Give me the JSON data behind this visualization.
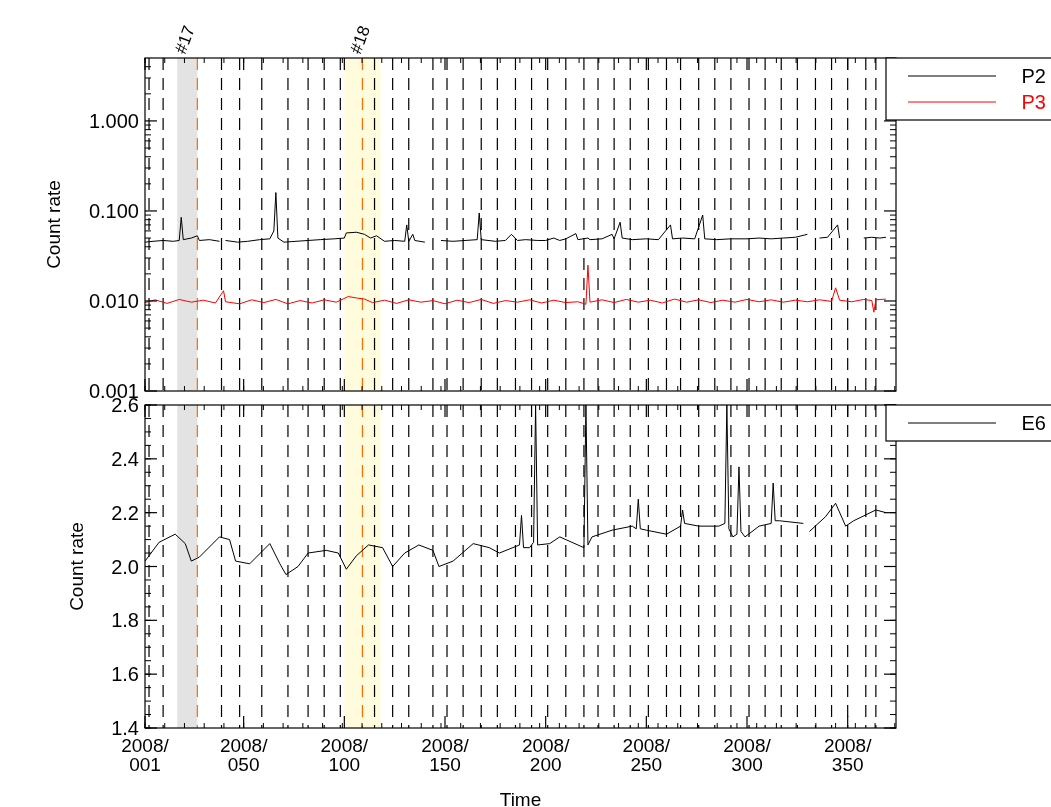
{
  "chart_data": [
    {
      "type": "line",
      "ylabel": "Count rate",
      "log": "y",
      "legend": "top right",
      "tick_labels": "y",
      "xlim": [
        "2008-01-01",
        "2009-01-08"
      ],
      "xticks": [
        {
          "value": "2008-01-01",
          "label": null
        },
        {
          "value": "2008-02-19",
          "label": null
        },
        {
          "value": "2008-04-09",
          "label": null
        },
        {
          "value": "2008-05-29",
          "label": null
        },
        {
          "value": "2008-07-18",
          "label": null
        },
        {
          "value": "2008-09-06",
          "label": null
        },
        {
          "value": "2008-10-26",
          "label": null
        },
        {
          "value": "2008-12-15",
          "label": null
        }
      ],
      "ylim": [
        0.001,
        5
      ],
      "yticks": [
        {
          "value": 0.001,
          "label": "0.001"
        },
        {
          "value": 0.01,
          "label": "0.010"
        },
        {
          "value": 0.1,
          "label": "0.100"
        },
        {
          "value": 1,
          "label": "1.000"
        }
      ],
      "bands": [
        {
          "axis": "x",
          "from": "2008-01-17",
          "to": "2008-01-27",
          "label": "#17",
          "color": "#e3e3e3"
        },
        {
          "axis": "x",
          "from": "2008-04-09",
          "to": "2008-04-27",
          "label": "#18",
          "color": "#fffbdc"
        }
      ],
      "ref_lines": [
        {
          "axis": "x",
          "value": "2008-01-03",
          "line_style": "dashed"
        },
        {
          "axis": "x",
          "value": "2008-01-10",
          "line_style": "dashed"
        },
        {
          "axis": "x",
          "value": "2008-01-27",
          "line_style": "dashed",
          "color": "#ff6a00"
        },
        {
          "axis": "x",
          "value": "2008-02-08",
          "line_style": "dashed"
        },
        {
          "axis": "x",
          "value": "2008-02-17",
          "line_style": "dashed"
        },
        {
          "axis": "x",
          "value": "2008-02-28",
          "line_style": "dashed"
        },
        {
          "axis": "x",
          "value": "2008-03-12",
          "line_style": "dashed"
        },
        {
          "axis": "x",
          "value": "2008-03-22",
          "line_style": "dashed"
        },
        {
          "axis": "x",
          "value": "2008-03-30",
          "line_style": "dashed"
        },
        {
          "axis": "x",
          "value": "2008-04-07",
          "line_style": "dashed"
        },
        {
          "axis": "x",
          "value": "2008-04-18",
          "line_style": "dashed",
          "color": "#ff6a00"
        },
        {
          "axis": "x",
          "value": "2008-04-24",
          "line_style": "dashed"
        },
        {
          "axis": "x",
          "value": "2008-05-03",
          "line_style": "dashed"
        },
        {
          "axis": "x",
          "value": "2008-05-11",
          "line_style": "dashed"
        },
        {
          "axis": "x",
          "value": "2008-05-23",
          "line_style": "dashed"
        },
        {
          "axis": "x",
          "value": "2008-05-30",
          "line_style": "dashed"
        },
        {
          "axis": "x",
          "value": "2008-06-07",
          "line_style": "dashed"
        },
        {
          "axis": "x",
          "value": "2008-06-16",
          "line_style": "dashed"
        },
        {
          "axis": "x",
          "value": "2008-06-24",
          "line_style": "dashed"
        },
        {
          "axis": "x",
          "value": "2008-07-03",
          "line_style": "dashed"
        },
        {
          "axis": "x",
          "value": "2008-07-11",
          "line_style": "dashed"
        },
        {
          "axis": "x",
          "value": "2008-07-19",
          "line_style": "dashed"
        },
        {
          "axis": "x",
          "value": "2008-07-28",
          "line_style": "dashed"
        },
        {
          "axis": "x",
          "value": "2008-08-06",
          "line_style": "dashed"
        },
        {
          "axis": "x",
          "value": "2008-08-13",
          "line_style": "dashed"
        },
        {
          "axis": "x",
          "value": "2008-08-21",
          "line_style": "dashed"
        },
        {
          "axis": "x",
          "value": "2008-08-29",
          "line_style": "dashed"
        },
        {
          "axis": "x",
          "value": "2008-09-07",
          "line_style": "dashed"
        },
        {
          "axis": "x",
          "value": "2008-09-16",
          "line_style": "dashed"
        },
        {
          "axis": "x",
          "value": "2008-09-23",
          "line_style": "dashed"
        },
        {
          "axis": "x",
          "value": "2008-10-02",
          "line_style": "dashed"
        },
        {
          "axis": "x",
          "value": "2008-10-10",
          "line_style": "dashed"
        },
        {
          "axis": "x",
          "value": "2008-10-18",
          "line_style": "dashed"
        },
        {
          "axis": "x",
          "value": "2008-10-27",
          "line_style": "dashed"
        },
        {
          "axis": "x",
          "value": "2008-11-04",
          "line_style": "dashed"
        },
        {
          "axis": "x",
          "value": "2008-11-12",
          "line_style": "dashed"
        },
        {
          "axis": "x",
          "value": "2008-11-20",
          "line_style": "dashed"
        },
        {
          "axis": "x",
          "value": "2008-11-29",
          "line_style": "dashed"
        },
        {
          "axis": "x",
          "value": "2008-12-07",
          "line_style": "dashed"
        },
        {
          "axis": "x",
          "value": "2008-12-15",
          "line_style": "dashed"
        },
        {
          "axis": "x",
          "value": "2008-12-24",
          "line_style": "dashed"
        },
        {
          "axis": "x",
          "value": "2008-12-29",
          "line_style": "dashed"
        }
      ],
      "series": [
        {
          "name": "P2",
          "color": "#000000",
          "x": [
            "2008-01-01",
            "2008-01-05",
            "2008-01-10",
            "2008-01-15",
            "2008-01-18",
            "2008-01-19",
            "2008-01-20",
            "2008-01-24",
            "2008-01-27",
            "2008-01-28",
            "2008-02-02",
            "2008-02-07",
            "2008-02-09",
            "2008-02-10",
            "2008-02-16",
            "2008-02-21",
            "2008-02-27",
            "2008-03-03",
            "2008-03-05",
            "2008-03-06",
            "2008-03-07",
            "2008-03-10",
            "2008-03-16",
            "2008-03-22",
            "2008-03-28",
            "2008-04-04",
            "2008-04-09",
            "2008-04-10",
            "2008-04-15",
            "2008-04-19",
            "2008-04-22",
            "2008-04-25",
            "2008-04-29",
            "2008-05-04",
            "2008-05-09",
            "2008-05-10",
            "2008-05-11",
            "2008-05-13",
            "2008-05-14",
            "2008-05-19",
            "2008-05-25",
            "2008-05-27",
            "2008-06-02",
            "2008-06-08",
            "2008-06-14",
            "2008-06-15",
            "2008-06-16",
            "2008-06-23",
            "2008-06-28",
            "2008-07-01",
            "2008-07-04",
            "2008-07-08",
            "2008-07-14",
            "2008-07-18",
            "2008-07-22",
            "2008-07-25",
            "2008-07-28",
            "2008-08-02",
            "2008-08-03",
            "2008-08-08",
            "2008-08-09",
            "2008-08-15",
            "2008-08-20",
            "2008-08-21",
            "2008-08-24",
            "2008-08-25",
            "2008-08-30",
            "2008-09-06",
            "2008-09-12",
            "2008-09-18",
            "2008-09-19",
            "2008-09-24",
            "2008-09-30",
            "2008-10-04",
            "2008-10-05",
            "2008-10-11",
            "2008-10-18",
            "2008-10-26",
            "2008-11-01",
            "2008-11-07",
            "2008-11-13",
            "2008-11-19",
            "2008-11-25",
            "2008-11-26",
            "2008-12-01",
            "2008-12-05",
            "2008-12-10",
            "2008-12-11",
            "2008-12-17",
            "2008-12-23",
            "2008-12-27",
            "2008-12-31",
            "2009-01-03"
          ],
          "values": [
            0.045,
            0.046,
            0.047,
            0.046,
            0.047,
            0.085,
            0.048,
            0.05,
            0.053,
            0.047,
            0.048,
            0.046,
            null,
            0.047,
            0.045,
            0.046,
            0.048,
            0.049,
            0.06,
            0.16,
            0.05,
            0.045,
            0.046,
            0.047,
            0.048,
            0.049,
            0.05,
            0.057,
            0.058,
            0.055,
            0.05,
            0.053,
            0.046,
            0.047,
            0.046,
            0.07,
            0.046,
            0.055,
            0.047,
            0.045,
            null,
            0.047,
            0.046,
            0.047,
            0.048,
            0.095,
            0.048,
            0.046,
            0.047,
            0.055,
            0.047,
            0.048,
            0.047,
            0.047,
            0.05,
            0.047,
            0.049,
            0.056,
            0.048,
            0.05,
            0.048,
            0.049,
            0.055,
            0.049,
            0.075,
            0.05,
            0.048,
            0.049,
            0.048,
            0.07,
            0.049,
            0.05,
            0.049,
            0.09,
            0.049,
            0.048,
            0.049,
            0.049,
            0.05,
            0.049,
            0.05,
            0.051,
            0.055,
            null,
            0.05,
            0.051,
            0.07,
            0.05,
            null,
            0.05,
            0.051,
            0.05,
            0.051
          ]
        },
        {
          "name": "P3",
          "color": "#ff0000",
          "x": [
            "2008-01-01",
            "2008-01-06",
            "2008-01-12",
            "2008-01-18",
            "2008-01-24",
            "2008-01-30",
            "2008-02-05",
            "2008-02-09",
            "2008-02-10",
            "2008-02-17",
            "2008-02-23",
            "2008-02-29",
            "2008-03-06",
            "2008-03-12",
            "2008-03-18",
            "2008-03-24",
            "2008-03-30",
            "2008-04-05",
            "2008-04-11",
            "2008-04-15",
            "2008-04-19",
            "2008-04-23",
            "2008-04-29",
            "2008-05-05",
            "2008-05-11",
            "2008-05-17",
            "2008-05-23",
            "2008-05-29",
            "2008-06-04",
            "2008-06-10",
            "2008-06-16",
            "2008-06-22",
            "2008-06-28",
            "2008-07-04",
            "2008-07-10",
            "2008-07-16",
            "2008-07-22",
            "2008-07-28",
            "2008-08-03",
            "2008-08-07",
            "2008-08-08",
            "2008-08-09",
            "2008-08-15",
            "2008-08-21",
            "2008-08-27",
            "2008-09-02",
            "2008-09-08",
            "2008-09-14",
            "2008-09-20",
            "2008-09-26",
            "2008-10-02",
            "2008-10-08",
            "2008-10-14",
            "2008-10-20",
            "2008-10-26",
            "2008-11-01",
            "2008-11-07",
            "2008-11-13",
            "2008-11-19",
            "2008-11-25",
            "2008-12-01",
            "2008-12-07",
            "2008-12-09",
            "2008-12-11",
            "2008-12-17",
            "2008-12-23",
            "2008-12-27",
            "2008-12-28",
            "2008-12-29",
            "2009-01-03"
          ],
          "values": [
            0.0096,
            0.0103,
            0.0094,
            0.0104,
            0.0097,
            0.0102,
            0.0095,
            0.013,
            0.0098,
            0.0093,
            0.0103,
            0.0096,
            0.0104,
            0.0093,
            0.0101,
            0.0095,
            0.0103,
            0.0097,
            0.0112,
            0.0108,
            0.0105,
            0.0096,
            0.0102,
            0.0094,
            0.0103,
            0.0097,
            0.0101,
            0.0093,
            0.0102,
            0.0096,
            0.0104,
            0.0094,
            0.0101,
            0.0097,
            0.0103,
            0.0095,
            0.0102,
            0.0096,
            0.0098,
            0.0092,
            0.025,
            0.0097,
            0.0103,
            0.0096,
            0.0104,
            0.0097,
            0.0102,
            0.0095,
            0.0105,
            0.0097,
            0.0103,
            0.0096,
            0.0102,
            0.0097,
            0.0104,
            0.0098,
            0.0103,
            0.0097,
            0.0102,
            0.0098,
            0.0103,
            0.0099,
            0.014,
            0.0102,
            0.0098,
            0.0104,
            0.0101,
            0.0075,
            0.0103,
            0.0105
          ]
        }
      ]
    },
    {
      "type": "line",
      "xlabel": "Time",
      "ylabel": "Count rate",
      "legend": "top right",
      "xlim": [
        "2008-01-01",
        "2009-01-08"
      ],
      "xticks": [
        {
          "value": "2008-01-01",
          "label": "2008/001"
        },
        {
          "value": "2008-02-19",
          "label": "2008/050"
        },
        {
          "value": "2008-04-09",
          "label": "2008/100"
        },
        {
          "value": "2008-05-29",
          "label": "2008/150"
        },
        {
          "value": "2008-07-18",
          "label": "2008/200"
        },
        {
          "value": "2008-09-06",
          "label": "2008/250"
        },
        {
          "value": "2008-10-26",
          "label": "2008/300"
        },
        {
          "value": "2008-12-15",
          "label": "2008/350"
        }
      ],
      "ylim": [
        1.4,
        2.6
      ],
      "yticks": [
        {
          "value": 1.4,
          "label": "1.4"
        },
        {
          "value": 1.6,
          "label": "1.6"
        },
        {
          "value": 1.8,
          "label": "1.8"
        },
        {
          "value": 2.0,
          "label": "2.0"
        },
        {
          "value": 2.2,
          "label": "2.2"
        },
        {
          "value": 2.4,
          "label": "2.4"
        },
        {
          "value": 2.6,
          "label": "2.6"
        }
      ],
      "bands": [
        {
          "axis": "x",
          "from": "2008-01-17",
          "to": "2008-01-27",
          "color": "#e3e3e3"
        },
        {
          "axis": "x",
          "from": "2008-04-09",
          "to": "2008-04-27",
          "color": "#fffbdc"
        }
      ],
      "ref_lines": [
        {
          "axis": "x",
          "value": "2008-01-03",
          "line_style": "dashed"
        },
        {
          "axis": "x",
          "value": "2008-01-10",
          "line_style": "dashed"
        },
        {
          "axis": "x",
          "value": "2008-01-27",
          "line_style": "dashed",
          "color": "#ff6a00"
        },
        {
          "axis": "x",
          "value": "2008-02-08",
          "line_style": "dashed"
        },
        {
          "axis": "x",
          "value": "2008-02-17",
          "line_style": "dashed"
        },
        {
          "axis": "x",
          "value": "2008-02-28",
          "line_style": "dashed"
        },
        {
          "axis": "x",
          "value": "2008-03-12",
          "line_style": "dashed"
        },
        {
          "axis": "x",
          "value": "2008-03-22",
          "line_style": "dashed"
        },
        {
          "axis": "x",
          "value": "2008-03-30",
          "line_style": "dashed"
        },
        {
          "axis": "x",
          "value": "2008-04-07",
          "line_style": "dashed"
        },
        {
          "axis": "x",
          "value": "2008-04-18",
          "line_style": "dashed",
          "color": "#ff6a00"
        },
        {
          "axis": "x",
          "value": "2008-04-24",
          "line_style": "dashed"
        },
        {
          "axis": "x",
          "value": "2008-05-03",
          "line_style": "dashed"
        },
        {
          "axis": "x",
          "value": "2008-05-11",
          "line_style": "dashed"
        },
        {
          "axis": "x",
          "value": "2008-05-23",
          "line_style": "dashed"
        },
        {
          "axis": "x",
          "value": "2008-05-30",
          "line_style": "dashed"
        },
        {
          "axis": "x",
          "value": "2008-06-07",
          "line_style": "dashed"
        },
        {
          "axis": "x",
          "value": "2008-06-16",
          "line_style": "dashed"
        },
        {
          "axis": "x",
          "value": "2008-06-24",
          "line_style": "dashed"
        },
        {
          "axis": "x",
          "value": "2008-07-03",
          "line_style": "dashed"
        },
        {
          "axis": "x",
          "value": "2008-07-11",
          "line_style": "dashed"
        },
        {
          "axis": "x",
          "value": "2008-07-19",
          "line_style": "dashed"
        },
        {
          "axis": "x",
          "value": "2008-07-28",
          "line_style": "dashed"
        },
        {
          "axis": "x",
          "value": "2008-08-06",
          "line_style": "dashed"
        },
        {
          "axis": "x",
          "value": "2008-08-13",
          "line_style": "dashed"
        },
        {
          "axis": "x",
          "value": "2008-08-21",
          "line_style": "dashed"
        },
        {
          "axis": "x",
          "value": "2008-08-29",
          "line_style": "dashed"
        },
        {
          "axis": "x",
          "value": "2008-09-07",
          "line_style": "dashed"
        },
        {
          "axis": "x",
          "value": "2008-09-16",
          "line_style": "dashed"
        },
        {
          "axis": "x",
          "value": "2008-09-23",
          "line_style": "dashed"
        },
        {
          "axis": "x",
          "value": "2008-10-02",
          "line_style": "dashed"
        },
        {
          "axis": "x",
          "value": "2008-10-10",
          "line_style": "dashed"
        },
        {
          "axis": "x",
          "value": "2008-10-18",
          "line_style": "dashed"
        },
        {
          "axis": "x",
          "value": "2008-10-27",
          "line_style": "dashed"
        },
        {
          "axis": "x",
          "value": "2008-11-04",
          "line_style": "dashed"
        },
        {
          "axis": "x",
          "value": "2008-11-12",
          "line_style": "dashed"
        },
        {
          "axis": "x",
          "value": "2008-11-20",
          "line_style": "dashed"
        },
        {
          "axis": "x",
          "value": "2008-11-29",
          "line_style": "dashed"
        },
        {
          "axis": "x",
          "value": "2008-12-07",
          "line_style": "dashed"
        },
        {
          "axis": "x",
          "value": "2008-12-15",
          "line_style": "dashed"
        },
        {
          "axis": "x",
          "value": "2008-12-24",
          "line_style": "dashed"
        },
        {
          "axis": "x",
          "value": "2008-12-29",
          "line_style": "dashed"
        }
      ],
      "series": [
        {
          "name": "E6",
          "color": "#000000",
          "x": [
            "2008-01-01",
            "2008-01-08",
            "2008-01-16",
            "2008-01-21",
            "2008-01-24",
            "2008-01-28",
            "2008-02-07",
            "2008-02-12",
            "2008-02-15",
            "2008-02-22",
            "2008-03-03",
            "2008-03-08",
            "2008-03-11",
            "2008-03-17",
            "2008-03-22",
            "2008-03-31",
            "2008-04-06",
            "2008-04-10",
            "2008-04-15",
            "2008-04-21",
            "2008-04-28",
            "2008-05-03",
            "2008-05-09",
            "2008-05-16",
            "2008-05-23",
            "2008-05-26",
            "2008-06-02",
            "2008-06-12",
            "2008-06-20",
            "2008-06-25",
            "2008-07-05",
            "2008-07-06",
            "2008-07-07",
            "2008-07-10",
            "2008-07-12",
            "2008-07-13",
            "2008-07-14",
            "2008-07-20",
            "2008-07-25",
            "2008-08-06",
            "2008-08-07",
            "2008-08-08",
            "2008-08-10",
            "2008-08-20",
            "2008-08-30",
            "2008-09-01",
            "2008-09-02",
            "2008-09-03",
            "2008-09-06",
            "2008-09-16",
            "2008-09-23",
            "2008-09-24",
            "2008-09-25",
            "2008-10-02",
            "2008-10-12",
            "2008-10-15",
            "2008-10-16",
            "2008-10-17",
            "2008-10-19",
            "2008-10-21",
            "2008-10-22",
            "2008-10-23",
            "2008-10-25",
            "2008-11-01",
            "2008-11-07",
            "2008-11-08",
            "2008-11-09",
            "2008-11-11",
            "2008-11-23",
            "2008-11-24",
            "2008-11-26",
            "2008-12-04",
            "2008-12-09",
            "2008-12-14",
            "2008-12-18",
            "2008-12-29",
            "2009-01-03"
          ],
          "values": [
            2.02,
            2.09,
            2.12,
            2.085,
            2.02,
            2.035,
            2.11,
            2.1,
            2.02,
            2.01,
            2.085,
            2.01,
            1.97,
            2.0,
            2.05,
            2.06,
            2.05,
            1.99,
            2.04,
            2.08,
            2.07,
            2.0,
            2.05,
            2.08,
            2.06,
            2.0,
            2.02,
            2.085,
            2.07,
            2.05,
            2.08,
            2.19,
            2.07,
            2.07,
            2.09,
            2.6,
            2.08,
            2.085,
            2.11,
            2.07,
            2.6,
            2.08,
            2.11,
            2.135,
            2.15,
            2.14,
            2.25,
            2.14,
            2.135,
            2.12,
            2.15,
            2.21,
            2.16,
            2.15,
            2.15,
            2.16,
            2.6,
            2.14,
            2.11,
            2.12,
            2.37,
            2.13,
            2.11,
            2.15,
            2.16,
            2.31,
            2.17,
            2.17,
            2.16,
            null,
            2.13,
            2.185,
            2.235,
            2.15,
            2.17,
            2.21,
            2.2
          ]
        }
      ]
    }
  ]
}
